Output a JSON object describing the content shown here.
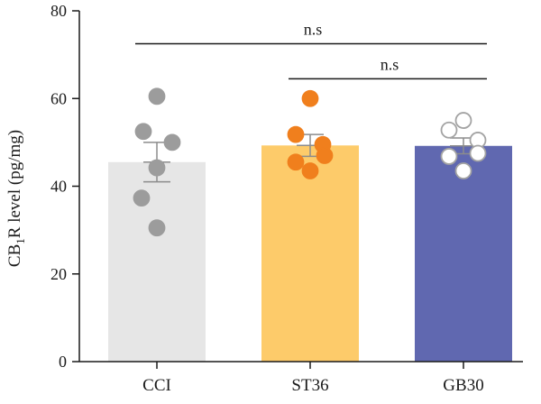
{
  "chart_data": {
    "type": "bar",
    "title": "",
    "xlabel": "",
    "ylabel": {
      "prefix": "CB",
      "subscript": "1",
      "suffix": "R level (pg/mg)"
    },
    "ylim": [
      0,
      80
    ],
    "yticks": [
      0,
      20,
      40,
      60,
      80
    ],
    "grid": false,
    "legend": "none",
    "categories": [
      "CCI",
      "ST36",
      "GB30"
    ],
    "bar_colors": [
      "#e6e6e6",
      "#fdcb6a",
      "#6068b0"
    ],
    "point_colors": [
      "#9c9c9c",
      "#f07f1d",
      "#ffffff"
    ],
    "point_edge_colors": [
      "#9c9c9c",
      "#f07f1d",
      "#a3a3a3"
    ],
    "errorbar_color": "#8c8c8c",
    "values": [
      45.5,
      49.3,
      49.2
    ],
    "error": [
      4.5,
      2.5,
      1.8
    ],
    "points": [
      [
        60.5,
        52.5,
        50.0,
        44.2,
        37.3,
        30.5
      ],
      [
        60.0,
        51.8,
        49.5,
        47.0,
        45.5,
        43.5
      ],
      [
        55.0,
        52.8,
        50.5,
        47.5,
        46.8,
        43.5
      ]
    ],
    "significance": [
      {
        "from": "CCI",
        "to": "GB30",
        "label": "n.s",
        "y": 72.5
      },
      {
        "from": "ST36",
        "to": "GB30",
        "label": "n.s",
        "y": 64.5
      }
    ]
  }
}
